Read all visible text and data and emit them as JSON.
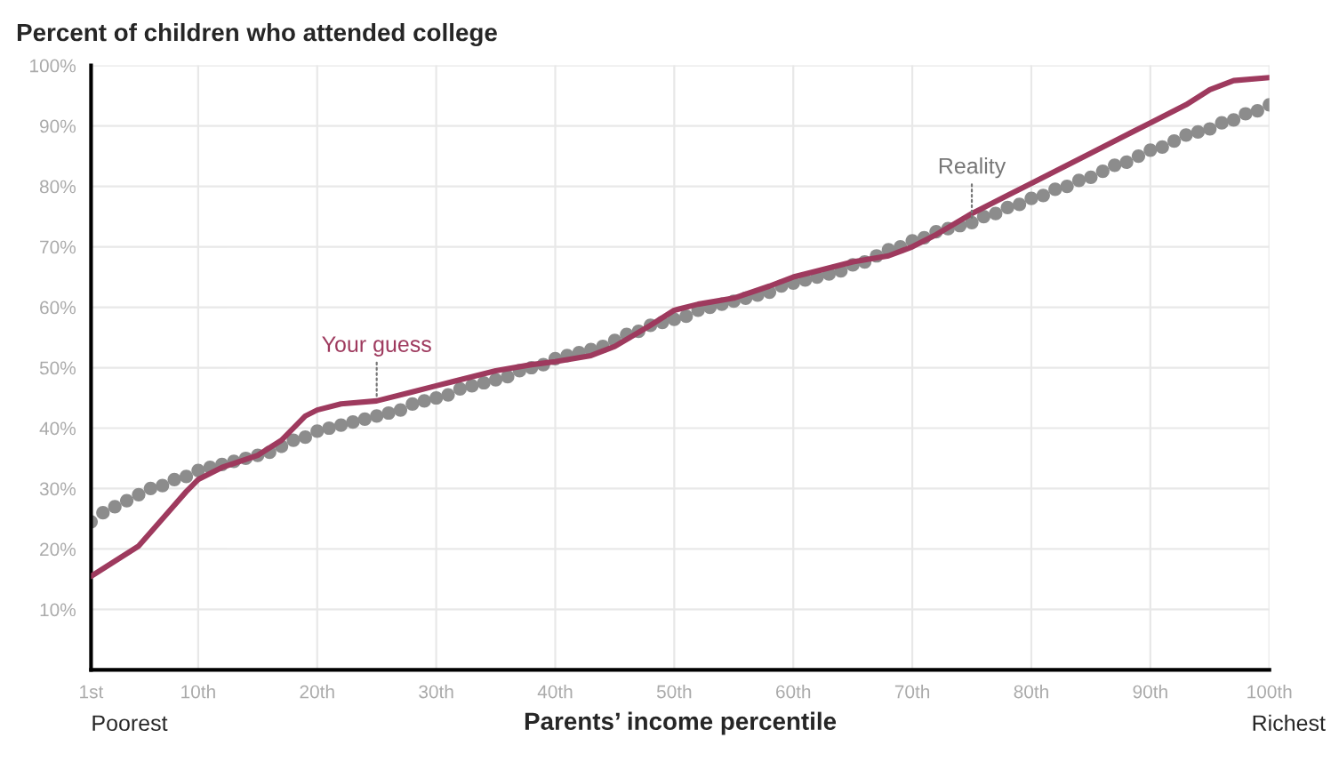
{
  "chart_data": {
    "type": "line",
    "title": "Percent of children who attended college",
    "xlabel": "Parents’ income percentile",
    "xlim": [
      1,
      100
    ],
    "ylim": [
      0,
      100
    ],
    "xticks": [
      {
        "value": 1,
        "label": "1st"
      },
      {
        "value": 10,
        "label": "10th"
      },
      {
        "value": 20,
        "label": "20th"
      },
      {
        "value": 30,
        "label": "30th"
      },
      {
        "value": 40,
        "label": "40th"
      },
      {
        "value": 50,
        "label": "50th"
      },
      {
        "value": 60,
        "label": "60th"
      },
      {
        "value": 70,
        "label": "70th"
      },
      {
        "value": 80,
        "label": "80th"
      },
      {
        "value": 90,
        "label": "90th"
      },
      {
        "value": 100,
        "label": "100th"
      }
    ],
    "yticks": [
      {
        "value": 10,
        "label": "10%"
      },
      {
        "value": 20,
        "label": "20%"
      },
      {
        "value": 30,
        "label": "30%"
      },
      {
        "value": 40,
        "label": "40%"
      },
      {
        "value": 50,
        "label": "50%"
      },
      {
        "value": 60,
        "label": "60%"
      },
      {
        "value": 70,
        "label": "70%"
      },
      {
        "value": 80,
        "label": "80%"
      },
      {
        "value": 90,
        "label": "90%"
      },
      {
        "value": 100,
        "label": "100%"
      }
    ],
    "grid": true,
    "legend": false,
    "series": [
      {
        "type": "scatter",
        "color": "#8c8c8c",
        "marker": "circle",
        "x": [
          1,
          2,
          3,
          4,
          5,
          6,
          7,
          8,
          9,
          10,
          11,
          12,
          13,
          14,
          15,
          16,
          17,
          18,
          19,
          20,
          21,
          22,
          23,
          24,
          25,
          26,
          27,
          28,
          29,
          30,
          31,
          32,
          33,
          34,
          35,
          36,
          37,
          38,
          39,
          40,
          41,
          42,
          43,
          44,
          45,
          46,
          47,
          48,
          49,
          50,
          51,
          52,
          53,
          54,
          55,
          56,
          57,
          58,
          59,
          60,
          61,
          62,
          63,
          64,
          65,
          66,
          67,
          68,
          69,
          70,
          71,
          72,
          73,
          74,
          75,
          76,
          77,
          78,
          79,
          80,
          81,
          82,
          83,
          84,
          85,
          86,
          87,
          88,
          89,
          90,
          91,
          92,
          93,
          94,
          95,
          96,
          97,
          98,
          99,
          100
        ],
        "values": [
          24.5,
          26,
          27,
          28,
          29,
          30,
          30.5,
          31.5,
          32,
          33,
          33.5,
          34,
          34.5,
          35,
          35.5,
          36,
          37,
          38,
          38.5,
          39.5,
          40,
          40.5,
          41,
          41.5,
          42,
          42.5,
          43,
          44,
          44.5,
          45,
          45.5,
          46.5,
          47,
          47.5,
          48,
          48.5,
          49.5,
          50,
          50.5,
          51.5,
          52,
          52.5,
          53,
          53.5,
          54.5,
          55.5,
          56,
          57,
          57.5,
          58,
          58.5,
          59.5,
          60,
          60.5,
          61,
          61.5,
          62,
          62.5,
          63.5,
          64,
          64.5,
          65,
          65.5,
          66,
          67,
          67.5,
          68.5,
          69.5,
          70,
          71,
          71.5,
          72.5,
          73,
          73.5,
          74,
          75,
          75.5,
          76.5,
          77,
          78,
          78.5,
          79.5,
          80,
          81,
          81.5,
          82.5,
          83.5,
          84,
          85,
          86,
          86.5,
          87.5,
          88.5,
          89,
          89.5,
          90.5,
          91,
          92,
          92.5,
          93.5
        ]
      },
      {
        "color": "#9e3a5e",
        "line_style": "solid",
        "x": [
          1,
          3,
          5,
          7,
          9,
          10,
          12,
          15,
          17,
          19,
          20,
          22,
          25,
          28,
          30,
          33,
          35,
          38,
          40,
          43,
          45,
          48,
          50,
          52,
          55,
          58,
          60,
          62,
          65,
          68,
          70,
          72,
          75,
          78,
          80,
          85,
          88,
          90,
          93,
          95,
          97,
          100
        ],
        "values": [
          15.5,
          18,
          20.5,
          25,
          29.5,
          31.5,
          33.5,
          35.5,
          38,
          42,
          43,
          44,
          44.5,
          46,
          47,
          48.5,
          49.5,
          50.5,
          51,
          52,
          53.5,
          57,
          59.5,
          60.5,
          61.5,
          63.5,
          65,
          66,
          67.5,
          68.5,
          70,
          72,
          75.5,
          78.5,
          80.5,
          85.5,
          88.5,
          90.5,
          93.5,
          96,
          97.5,
          98
        ]
      }
    ],
    "annotations": [
      {
        "text": "Your guess",
        "x": 25,
        "y": 44.5
      },
      {
        "text": "Reality",
        "x": 75,
        "y": 74
      },
      "Poorest",
      "Richest"
    ]
  }
}
